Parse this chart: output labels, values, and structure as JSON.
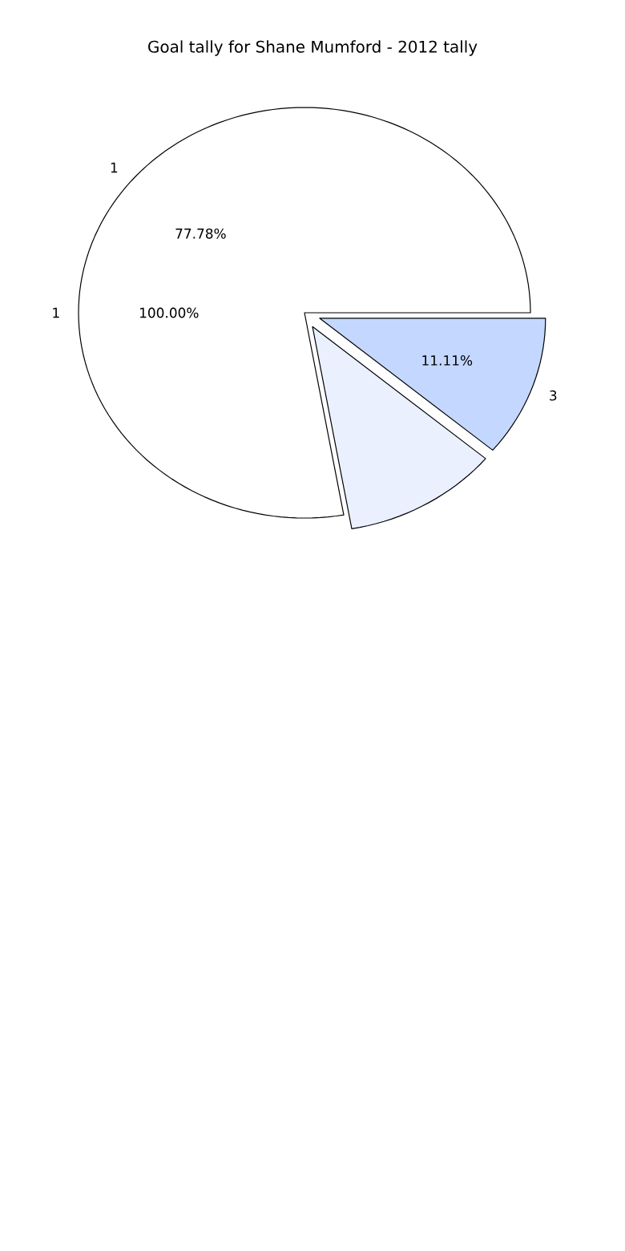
{
  "chart_data": {
    "type": "pie",
    "title": "Goal tally for Shane Mumford - 2012 tally",
    "categories": [
      "1",
      null,
      "3"
    ],
    "values": [
      77.78,
      11.11,
      11.11
    ],
    "colors": [
      "#ffffff",
      "#eaf0fe",
      "#c4d8ff"
    ],
    "value_labels": [
      "77.78%",
      null,
      "11.11%"
    ],
    "annotations": [
      "1",
      "100.00%"
    ]
  }
}
